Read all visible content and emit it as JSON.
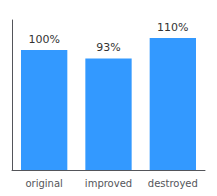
{
  "chart_data": {
    "type": "bar",
    "categories": [
      "original",
      "improved",
      "destroyed"
    ],
    "values": [
      100,
      93,
      110
    ],
    "value_labels": [
      "100%",
      "93%",
      "110%"
    ],
    "color": "#3399FF",
    "ylim": [
      0,
      125
    ],
    "grid": false,
    "data_labels": true,
    "tick_labels": "x"
  }
}
